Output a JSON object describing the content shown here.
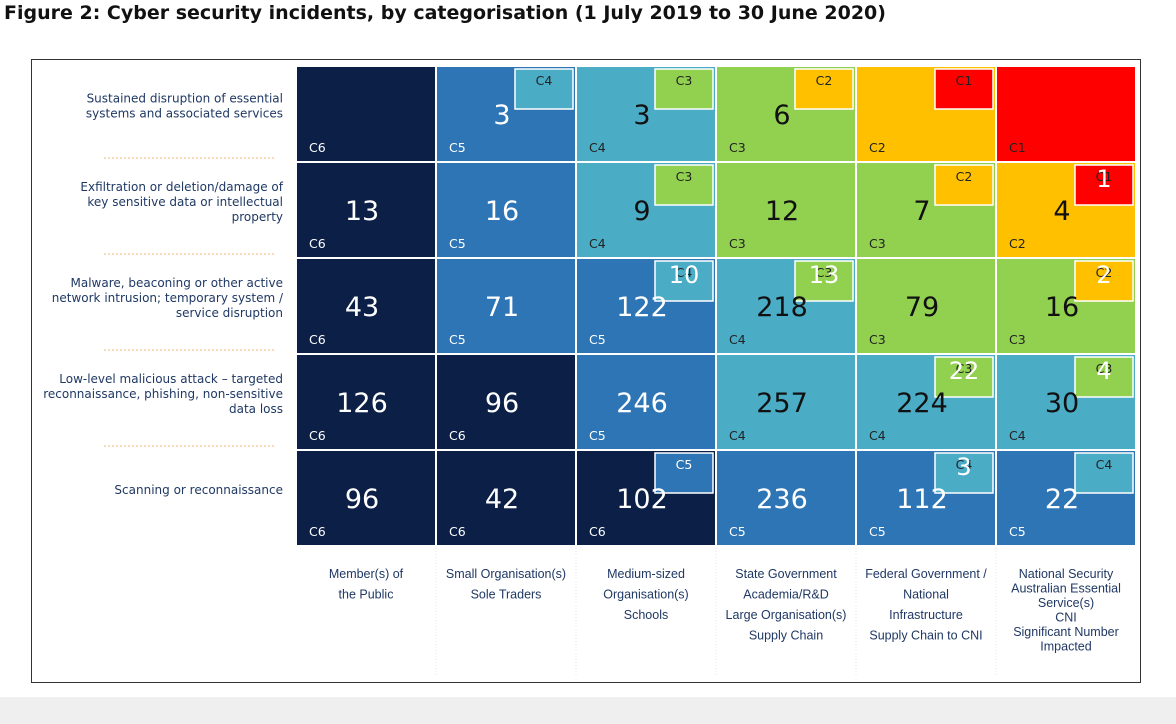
{
  "title": "Figure 2: Cyber security incidents, by categorisation (1 July 2019 to 30 June 2020)",
  "colors": {
    "C1": "#ff0000",
    "C2": "#ffc000",
    "C3": "#92d050",
    "C4": "#4bacc6",
    "C5": "#2e75b6",
    "C6": "#0b1f47"
  },
  "chart_data": {
    "type": "heatmap",
    "title": "Figure 2: Cyber security incidents, by categorisation (1 July 2019 to 30 June 2020)",
    "rows": [
      "Sustained disruption of essential systems and associated services",
      "Exfiltration or deletion/damage of key sensitive data or intellectual property",
      "Malware, beaconing or other active network intrusion; temporary system / service disruption",
      "Low-level malicious attack – targeted reconnaissance, phishing, non-sensitive data loss",
      "Scanning or reconnaissance"
    ],
    "row_label_lines": [
      [
        "Sustained disruption of essential",
        "systems and associated services"
      ],
      [
        "Exfiltration or deletion/damage of",
        "key sensitive data or intellectual",
        "property"
      ],
      [
        "Malware, beaconing or other active",
        "network intrusion; temporary system /",
        "service disruption"
      ],
      [
        "Low-level malicious attack – targeted",
        "reconnaissance, phishing, non-sensitive",
        "data loss"
      ],
      [
        "Scanning or reconnaissance"
      ]
    ],
    "columns": [
      [
        "Member(s) of",
        "the Public"
      ],
      [
        "Small Organisation(s)",
        "Sole Traders"
      ],
      [
        "Medium-sized",
        "Organisation(s)",
        "Schools"
      ],
      [
        "State Government",
        "Academia/R&D",
        "Large Organisation(s)",
        "Supply Chain"
      ],
      [
        "Federal Government /",
        "National",
        "Infrastructure",
        "Supply Chain to CNI"
      ],
      [
        "National Security",
        "Australian Essential",
        "Service(s)",
        "CNI",
        "Significant Number",
        "Impacted"
      ]
    ],
    "cells": [
      [
        {
          "category": "C6",
          "value": null
        },
        {
          "category": "C5",
          "value": 3,
          "sub": {
            "category": "C4",
            "value": null
          }
        },
        {
          "category": "C4",
          "value": 3,
          "sub": {
            "category": "C3",
            "value": null
          }
        },
        {
          "category": "C3",
          "value": 6,
          "sub": {
            "category": "C2",
            "value": null
          }
        },
        {
          "category": "C2",
          "value": null,
          "sub": {
            "category": "C1",
            "value": null
          }
        },
        {
          "category": "C1",
          "value": null
        }
      ],
      [
        {
          "category": "C6",
          "value": 13
        },
        {
          "category": "C5",
          "value": 16
        },
        {
          "category": "C4",
          "value": 9,
          "sub": {
            "category": "C3",
            "value": null
          }
        },
        {
          "category": "C3",
          "value": 12
        },
        {
          "category": "C3",
          "value": 7,
          "sub": {
            "category": "C2",
            "value": null
          }
        },
        {
          "category": "C2",
          "value": 4,
          "sub": {
            "category": "C1",
            "value": 1
          }
        }
      ],
      [
        {
          "category": "C6",
          "value": 43
        },
        {
          "category": "C5",
          "value": 71
        },
        {
          "category": "C5",
          "value": 122,
          "sub": {
            "category": "C4",
            "value": 10
          }
        },
        {
          "category": "C4",
          "value": 218,
          "sub": {
            "category": "C3",
            "value": 13
          }
        },
        {
          "category": "C3",
          "value": 79
        },
        {
          "category": "C3",
          "value": 16,
          "sub": {
            "category": "C2",
            "value": 2
          }
        }
      ],
      [
        {
          "category": "C6",
          "value": 126
        },
        {
          "category": "C6",
          "value": 96
        },
        {
          "category": "C5",
          "value": 246
        },
        {
          "category": "C4",
          "value": 257
        },
        {
          "category": "C4",
          "value": 224,
          "sub": {
            "category": "C3",
            "value": 22
          }
        },
        {
          "category": "C4",
          "value": 30,
          "sub": {
            "category": "C3",
            "value": 4
          }
        }
      ],
      [
        {
          "category": "C6",
          "value": 96
        },
        {
          "category": "C6",
          "value": 42
        },
        {
          "category": "C6",
          "value": 102,
          "sub": {
            "category": "C5",
            "value": null
          }
        },
        {
          "category": "C5",
          "value": 236
        },
        {
          "category": "C5",
          "value": 112,
          "sub": {
            "category": "C4",
            "value": 3
          }
        },
        {
          "category": "C5",
          "value": 22,
          "sub": {
            "category": "C4",
            "value": null
          }
        }
      ]
    ]
  }
}
